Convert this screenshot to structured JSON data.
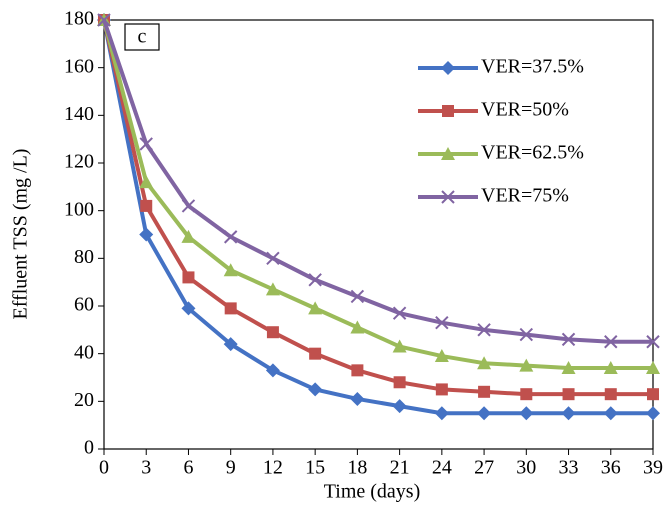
{
  "chart_data": {
    "type": "line",
    "x_label": "Time (days)",
    "y_label": "Effluent TSS (mg /L)",
    "annotation": "c",
    "x": [
      0,
      3,
      6,
      9,
      12,
      15,
      18,
      21,
      24,
      27,
      30,
      33,
      36,
      39
    ],
    "xlim": [
      0,
      39
    ],
    "xticks": [
      0,
      3,
      6,
      9,
      12,
      15,
      18,
      21,
      24,
      27,
      30,
      33,
      36,
      39
    ],
    "ylim": [
      0,
      180
    ],
    "yticks": [
      0,
      20,
      40,
      60,
      80,
      100,
      120,
      140,
      160,
      180
    ],
    "grid": false,
    "legend_position": "upper-right",
    "series": [
      {
        "name": "VER=37.5%",
        "color": "#4472c4",
        "marker": "diamond",
        "values": [
          180,
          90,
          59,
          44,
          33,
          25,
          21,
          18,
          15,
          15,
          15,
          15,
          15,
          15
        ]
      },
      {
        "name": "VER=50%",
        "color": "#c0504d",
        "marker": "square",
        "values": [
          180,
          102,
          72,
          59,
          49,
          40,
          33,
          28,
          25,
          24,
          23,
          23,
          23,
          23
        ]
      },
      {
        "name": "VER=62.5%",
        "color": "#9bbb59",
        "marker": "triangle",
        "values": [
          180,
          112,
          89,
          75,
          67,
          59,
          51,
          43,
          39,
          36,
          35,
          34,
          34,
          34
        ]
      },
      {
        "name": "VER=75%",
        "color": "#8064a2",
        "marker": "x",
        "values": [
          180,
          128,
          102,
          89,
          80,
          71,
          64,
          57,
          53,
          50,
          48,
          46,
          45,
          45
        ]
      }
    ]
  }
}
